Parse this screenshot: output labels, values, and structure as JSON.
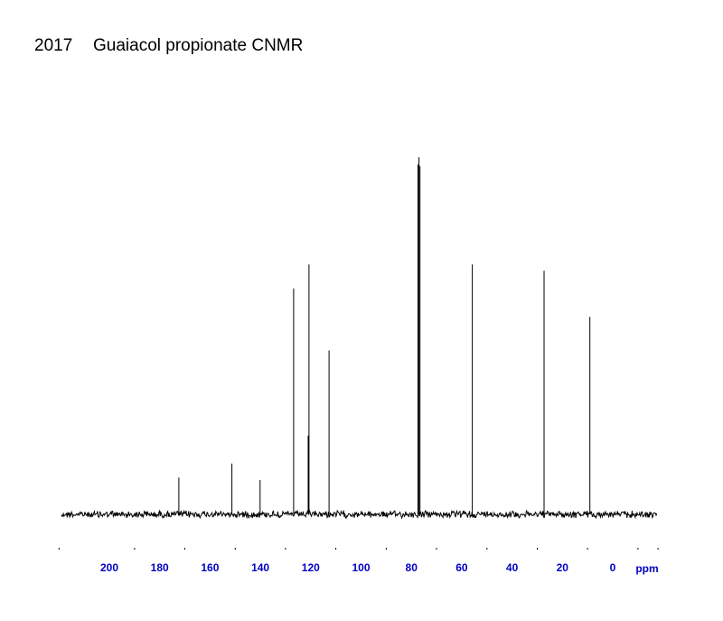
{
  "chart_data": {
    "type": "line",
    "title_number": "2017",
    "title": "Guaiacol propionate CNMR",
    "xlabel": "ppm",
    "ylabel": "",
    "xlim": [
      220,
      -18
    ],
    "x_reversed": true,
    "ylim": [
      0,
      1.05
    ],
    "grid": false,
    "legend": "none",
    "x_ticks_major": [
      200,
      180,
      160,
      140,
      120,
      100,
      80,
      60,
      40,
      20,
      0
    ],
    "x_ticks_minor": [
      220,
      190,
      170,
      150,
      130,
      110,
      90,
      70,
      50,
      30,
      10,
      -10,
      -18
    ],
    "peaks": [
      {
        "ppm": 172.4,
        "height": 0.105
      },
      {
        "ppm": 151.3,
        "height": 0.145
      },
      {
        "ppm": 140.1,
        "height": 0.098
      },
      {
        "ppm": 126.8,
        "height": 0.645
      },
      {
        "ppm": 121.0,
        "height": 0.225
      },
      {
        "ppm": 120.7,
        "height": 0.714
      },
      {
        "ppm": 112.7,
        "height": 0.468
      },
      {
        "ppm": 77.4,
        "height": 1.0
      },
      {
        "ppm": 77.0,
        "height": 1.02
      },
      {
        "ppm": 76.6,
        "height": 0.995
      },
      {
        "ppm": 55.8,
        "height": 0.714
      },
      {
        "ppm": 27.3,
        "height": 0.696
      },
      {
        "ppm": 9.1,
        "height": 0.564
      }
    ],
    "colors": {
      "spectrum": "#000000",
      "axis_labels": "#0000c0",
      "background": "#ffffff"
    }
  }
}
